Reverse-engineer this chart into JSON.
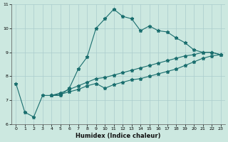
{
  "xlabel": "Humidex (Indice chaleur)",
  "background_color": "#cce8e0",
  "grid_color": "#aacccc",
  "line_color": "#1a6e6e",
  "xlim": [
    -0.5,
    23.5
  ],
  "ylim": [
    6,
    11
  ],
  "xticks": [
    0,
    1,
    2,
    3,
    4,
    5,
    6,
    7,
    8,
    9,
    10,
    11,
    12,
    13,
    14,
    15,
    16,
    17,
    18,
    19,
    20,
    21,
    22,
    23
  ],
  "yticks": [
    6,
    7,
    8,
    9,
    10,
    11
  ],
  "line1_x": [
    0,
    1,
    2,
    3,
    4,
    5,
    6,
    7,
    8,
    9,
    10,
    11,
    12,
    13,
    14,
    15,
    16,
    17,
    18,
    19,
    20,
    21,
    22,
    23
  ],
  "line1_y": [
    7.7,
    6.5,
    6.3,
    7.2,
    7.2,
    7.2,
    7.5,
    8.3,
    8.8,
    10.0,
    10.4,
    10.8,
    10.5,
    10.4,
    9.9,
    10.1,
    9.9,
    9.85,
    9.6,
    9.4,
    9.1,
    9.0,
    9.0,
    8.9
  ],
  "line2_x": [
    4,
    5,
    6,
    7,
    8,
    9,
    10,
    11,
    12,
    13,
    14,
    15,
    16,
    17,
    18,
    19,
    20,
    21,
    22,
    23
  ],
  "line2_y": [
    7.2,
    7.3,
    7.45,
    7.6,
    7.75,
    7.9,
    7.95,
    8.05,
    8.15,
    8.25,
    8.35,
    8.45,
    8.55,
    8.65,
    8.75,
    8.85,
    8.9,
    9.0,
    9.0,
    8.9
  ],
  "line3_x": [
    4,
    5,
    6,
    7,
    8,
    9,
    10,
    11,
    12,
    13,
    14,
    15,
    16,
    17,
    18,
    19,
    20,
    21,
    22,
    23
  ],
  "line3_y": [
    7.2,
    7.25,
    7.35,
    7.45,
    7.6,
    7.7,
    7.5,
    7.65,
    7.75,
    7.85,
    7.9,
    8.0,
    8.1,
    8.2,
    8.3,
    8.45,
    8.6,
    8.75,
    8.85,
    8.9
  ],
  "marker": "*",
  "marker_size": 3.5,
  "line_width": 0.8
}
